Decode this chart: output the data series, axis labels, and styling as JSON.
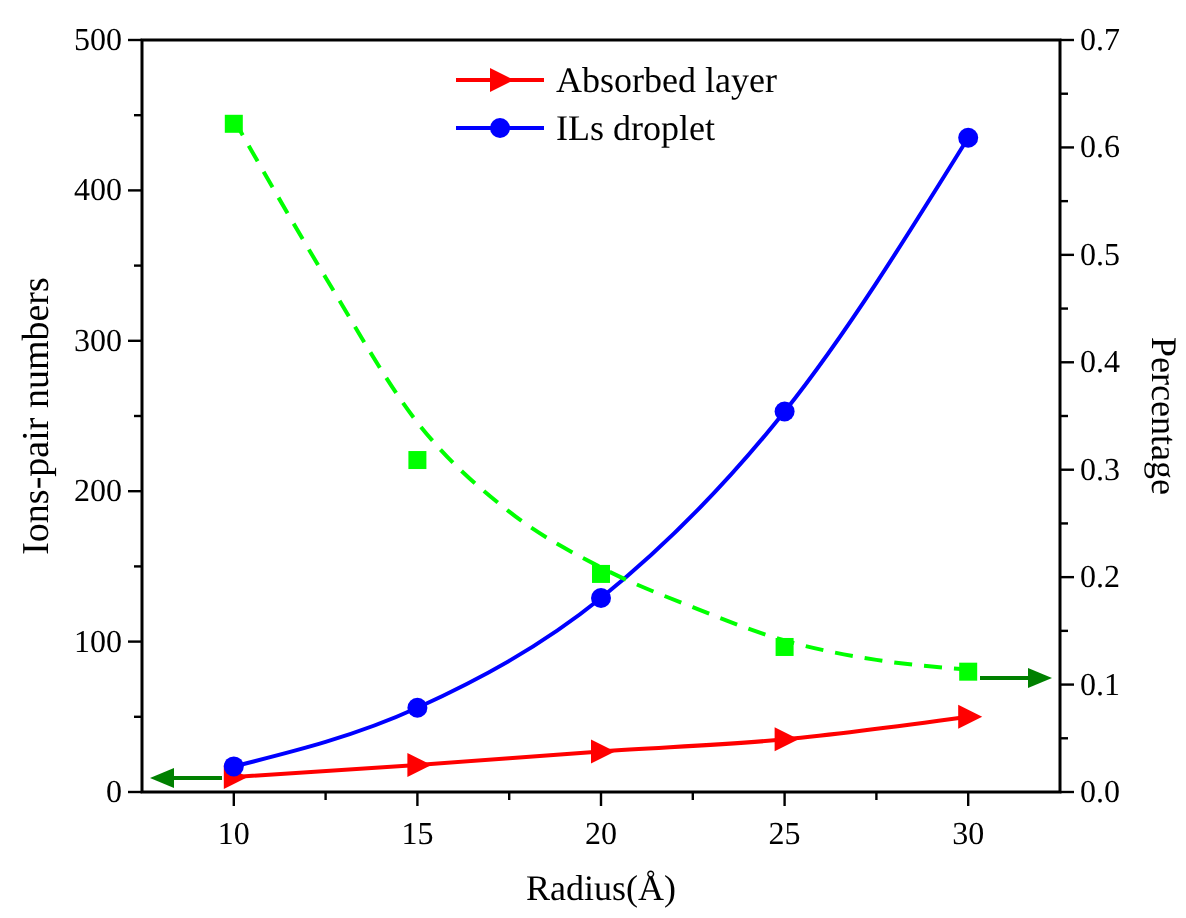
{
  "chart_data": {
    "type": "line",
    "xlabel": "Radius(Å)",
    "ylabel": "Ions-pair numbers",
    "y2label": "Percentage",
    "xlim": [
      7.5,
      32.5
    ],
    "xticks": [
      10,
      {
        "value": 12.5,
        "label": null
      },
      15,
      {
        "value": 17.5,
        "label": null
      },
      20,
      {
        "value": 22.5,
        "label": null
      },
      25,
      {
        "value": 27.5,
        "label": null
      },
      30
    ],
    "ylim": [
      0,
      500
    ],
    "yticks": [
      0,
      {
        "value": 50,
        "label": null
      },
      100,
      {
        "value": 150,
        "label": null
      },
      200,
      {
        "value": 250,
        "label": null
      },
      300,
      {
        "value": 350,
        "label": null
      },
      400,
      {
        "value": 450,
        "label": null
      },
      500
    ],
    "y2lim": [
      0,
      0.7
    ],
    "y2ticks": [
      {
        "value": 0,
        "label": "0.0"
      },
      {
        "value": 0.05,
        "label": null
      },
      0.1,
      {
        "value": 0.15,
        "label": null
      },
      0.2,
      {
        "value": 0.25,
        "label": null
      },
      0.3,
      {
        "value": 0.35,
        "label": null
      },
      0.4,
      {
        "value": 0.45,
        "label": null
      },
      0.5,
      {
        "value": 0.55,
        "label": null
      },
      0.6,
      {
        "value": 0.65,
        "label": null
      },
      0.7
    ],
    "x": [
      10,
      15,
      20,
      25,
      30
    ],
    "legend": "top",
    "grid": false,
    "series": [
      {
        "name": "Absorbed layer",
        "color": "#ff0000",
        "marker": "triangle",
        "values": [
          10,
          18,
          27,
          35,
          50
        ]
      },
      {
        "name": "ILs droplet",
        "color": "#0000ff",
        "marker": "circle",
        "values": [
          17,
          56,
          129,
          253,
          435
        ]
      },
      {
        "type": "scatter",
        "axis": "y2",
        "color": "#00ff00",
        "marker": "square",
        "values": [
          0.622,
          0.309,
          0.203,
          0.135,
          0.112
        ]
      },
      {
        "type": "line",
        "axis": "y2",
        "color": "#00ff00",
        "marker": "none",
        "line_style": "dashed",
        "x": [
          10,
          12.5,
          15,
          17.5,
          20,
          22.5,
          25,
          27.5,
          30
        ],
        "values": [
          0.626,
          0.479,
          0.344,
          0.261,
          0.209,
          0.172,
          0.141,
          0.123,
          0.114
        ]
      }
    ]
  }
}
